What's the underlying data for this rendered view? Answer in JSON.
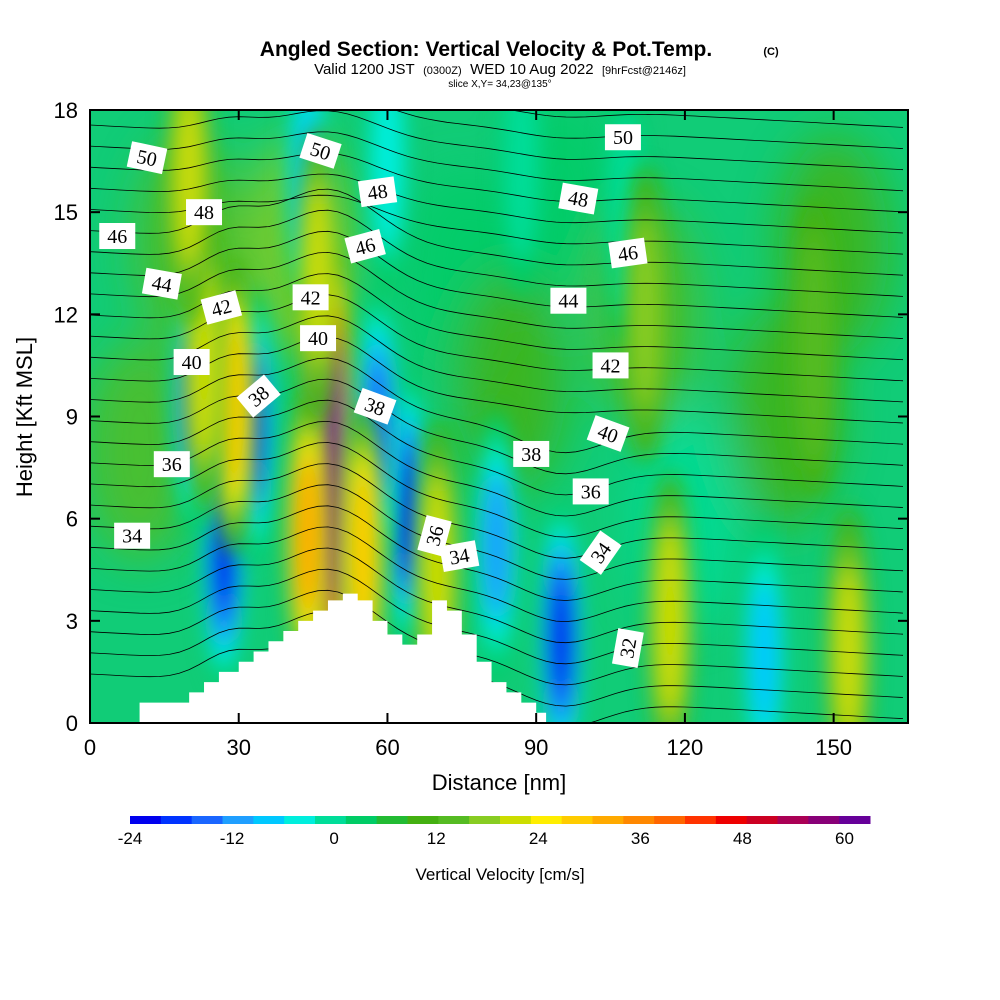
{
  "title": {
    "main": "Angled Section: Vertical Velocity & Pot.Temp.",
    "copyright": "(C)",
    "valid_prefix": "Valid 1200 JST",
    "valid_utc": "(0300Z)",
    "valid_suffix": "WED 10 Aug 2022",
    "forecast": "[9hrFcst@2146z]",
    "slice": "slice X,Y= 34,23@135°"
  },
  "chart_data": {
    "type": "heatmap",
    "xlabel": "Distance [nm]",
    "ylabel": "Height [Kft MSL]",
    "xlim": [
      0,
      165
    ],
    "ylim": [
      0,
      18
    ],
    "x_ticks": [
      0,
      30,
      60,
      90,
      120,
      150
    ],
    "y_ticks": [
      0,
      3,
      6,
      9,
      12,
      15,
      18
    ],
    "colorbar": {
      "title": "Vertical Velocity [cm/s]",
      "min": -24,
      "max": 63,
      "step": 3,
      "tick_values": [
        -24,
        -12,
        0,
        12,
        24,
        36,
        48,
        60
      ],
      "colors": [
        "#0000ee",
        "#0033ff",
        "#1a66ff",
        "#1f9fff",
        "#00c8ff",
        "#00eedd",
        "#00dd99",
        "#00cc66",
        "#22bb33",
        "#44b011",
        "#55bb22",
        "#88cc22",
        "#ccdd00",
        "#ffee00",
        "#ffcc00",
        "#ffaa00",
        "#ff8800",
        "#ff6600",
        "#ff3300",
        "#ee0000",
        "#cc0022",
        "#aa0055",
        "#880077",
        "#660099"
      ]
    },
    "terrain": [
      [
        10,
        0.6
      ],
      [
        18,
        0.6
      ],
      [
        20,
        0.9
      ],
      [
        23,
        1.2
      ],
      [
        26,
        1.5
      ],
      [
        30,
        1.8
      ],
      [
        33,
        2.1
      ],
      [
        36,
        2.4
      ],
      [
        39,
        2.7
      ],
      [
        42,
        3.0
      ],
      [
        45,
        3.3
      ],
      [
        48,
        3.6
      ],
      [
        51,
        3.8
      ],
      [
        54,
        3.6
      ],
      [
        57,
        3.0
      ],
      [
        60,
        2.6
      ],
      [
        63,
        2.3
      ],
      [
        66,
        2.6
      ],
      [
        69,
        3.6
      ],
      [
        72,
        3.3
      ],
      [
        75,
        2.6
      ],
      [
        78,
        1.8
      ],
      [
        81,
        1.2
      ],
      [
        84,
        0.9
      ],
      [
        87,
        0.6
      ],
      [
        90,
        0.3
      ],
      [
        92,
        0.3
      ]
    ],
    "updrafts": [
      {
        "x": 48.5,
        "y": 7.3,
        "w": 63
      },
      {
        "x": 44,
        "y": 5.5,
        "w": 22
      },
      {
        "x": 29,
        "y": 9.3,
        "w": 20
      },
      {
        "x": 23,
        "y": 10.5,
        "w": 14
      },
      {
        "x": 55,
        "y": 5.0,
        "w": 20
      },
      {
        "x": 70,
        "y": 4.5,
        "w": 14
      },
      {
        "x": 117,
        "y": 3.0,
        "w": 14
      },
      {
        "x": 153,
        "y": 2.0,
        "w": 12
      },
      {
        "x": 46,
        "y": 13.2,
        "w": 12
      },
      {
        "x": 20,
        "y": 16.0,
        "w": 12
      },
      {
        "x": 112,
        "y": 12.0,
        "w": 9
      },
      {
        "x": 146,
        "y": 11.0,
        "w": 8
      }
    ],
    "downdrafts": [
      {
        "x": 27,
        "y": 5.0,
        "w": -24
      },
      {
        "x": 64,
        "y": 6.2,
        "w": -24
      },
      {
        "x": 95,
        "y": 2.5,
        "w": -24
      },
      {
        "x": 33,
        "y": 8.7,
        "w": -20
      },
      {
        "x": 21,
        "y": 9.5,
        "w": -16
      },
      {
        "x": 44,
        "y": 16.0,
        "w": -12
      },
      {
        "x": 58,
        "y": 8.8,
        "w": -18
      },
      {
        "x": 82,
        "y": 5.2,
        "w": -14
      },
      {
        "x": 136,
        "y": 2.0,
        "w": -12
      },
      {
        "x": 87,
        "y": 16.5,
        "w": -6
      },
      {
        "x": 108,
        "y": 15.0,
        "w": -6
      },
      {
        "x": 60,
        "y": 16.5,
        "w": -8
      }
    ],
    "contour_labels": [
      {
        "text": "50",
        "x": 11.5,
        "y": 16.6,
        "angle": 12
      },
      {
        "text": "50",
        "x": 46.5,
        "y": 16.8,
        "angle": 18
      },
      {
        "text": "50",
        "x": 107.5,
        "y": 17.2,
        "angle": 0
      },
      {
        "text": "48",
        "x": 23,
        "y": 15.0,
        "angle": 0
      },
      {
        "text": "48",
        "x": 58,
        "y": 15.6,
        "angle": -8
      },
      {
        "text": "48",
        "x": 98.5,
        "y": 15.4,
        "angle": 10
      },
      {
        "text": "46",
        "x": 5.5,
        "y": 14.3,
        "angle": 0
      },
      {
        "text": "46",
        "x": 55.5,
        "y": 14.0,
        "angle": -15
      },
      {
        "text": "46",
        "x": 108.5,
        "y": 13.8,
        "angle": -8
      },
      {
        "text": "44",
        "x": 14.5,
        "y": 12.9,
        "angle": 10
      },
      {
        "text": "44",
        "x": 96.5,
        "y": 12.4,
        "angle": 0
      },
      {
        "text": "42",
        "x": 26.5,
        "y": 12.2,
        "angle": -15
      },
      {
        "text": "42",
        "x": 44.5,
        "y": 12.5,
        "angle": 0
      },
      {
        "text": "42",
        "x": 105,
        "y": 10.5,
        "angle": 0
      },
      {
        "text": "40",
        "x": 20.5,
        "y": 10.6,
        "angle": 0
      },
      {
        "text": "40",
        "x": 46,
        "y": 11.3,
        "angle": 0
      },
      {
        "text": "40",
        "x": 104.5,
        "y": 8.5,
        "angle": 20
      },
      {
        "text": "38",
        "x": 34,
        "y": 9.6,
        "angle": -40
      },
      {
        "text": "38",
        "x": 57.5,
        "y": 9.3,
        "angle": 20
      },
      {
        "text": "38",
        "x": 89,
        "y": 7.9,
        "angle": 0
      },
      {
        "text": "36",
        "x": 16.5,
        "y": 7.6,
        "angle": 0
      },
      {
        "text": "36",
        "x": 69.5,
        "y": 5.5,
        "angle": -75
      },
      {
        "text": "36",
        "x": 101,
        "y": 6.8,
        "angle": 0
      },
      {
        "text": "34",
        "x": 8.5,
        "y": 5.5,
        "angle": 0
      },
      {
        "text": "34",
        "x": 74.5,
        "y": 4.9,
        "angle": -10
      },
      {
        "text": "34",
        "x": 103,
        "y": 5.0,
        "angle": -55
      },
      {
        "text": "32",
        "x": 108.5,
        "y": 2.2,
        "angle": -80
      }
    ],
    "grid": false
  }
}
